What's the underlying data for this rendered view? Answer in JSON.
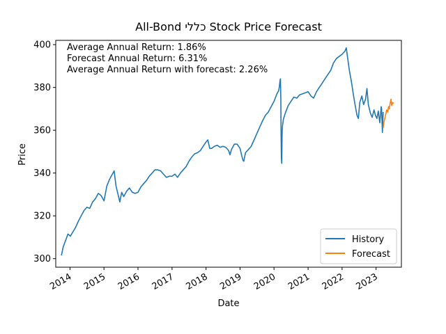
{
  "chart_data": {
    "type": "line",
    "title": "All-Bond כללי Stock Price Forecast",
    "xlabel": "Date",
    "ylabel": "Price",
    "xlim": [
      "2013-08-01",
      "2023-09-30"
    ],
    "ylim": [
      296,
      402
    ],
    "x_ticks": [
      "2014",
      "2015",
      "2016",
      "2017",
      "2018",
      "2019",
      "2020",
      "2021",
      "2022",
      "2023"
    ],
    "y_ticks": [
      300,
      320,
      340,
      360,
      380,
      400
    ],
    "grid": false,
    "legend_position": "bottom-right",
    "annotations": [
      "Average Annual Return: 1.86%",
      "Forecast Annual Return: 6.31%",
      "Average Annual Return with forecast: 2.26%"
    ],
    "series": [
      {
        "name": "History",
        "color": "#1f77b4",
        "points": [
          [
            "2013-10-01",
            301.5
          ],
          [
            "2013-10-20",
            305.5
          ],
          [
            "2013-11-15",
            308.5
          ],
          [
            "2013-12-10",
            311.5
          ],
          [
            "2014-01-05",
            310.5
          ],
          [
            "2014-02-01",
            312.5
          ],
          [
            "2014-03-01",
            314.5
          ],
          [
            "2014-04-01",
            317.5
          ],
          [
            "2014-05-01",
            320.0
          ],
          [
            "2014-06-01",
            322.5
          ],
          [
            "2014-07-01",
            324.0
          ],
          [
            "2014-08-01",
            323.5
          ],
          [
            "2014-09-01",
            326.5
          ],
          [
            "2014-10-01",
            328.0
          ],
          [
            "2014-11-01",
            330.5
          ],
          [
            "2014-12-01",
            329.5
          ],
          [
            "2015-01-01",
            327.0
          ],
          [
            "2015-02-01",
            334.0
          ],
          [
            "2015-03-01",
            337.0
          ],
          [
            "2015-04-01",
            339.5
          ],
          [
            "2015-04-20",
            341.0
          ],
          [
            "2015-05-10",
            334.0
          ],
          [
            "2015-06-01",
            330.0
          ],
          [
            "2015-06-20",
            326.5
          ],
          [
            "2015-07-10",
            331.0
          ],
          [
            "2015-08-01",
            329.0
          ],
          [
            "2015-09-01",
            331.5
          ],
          [
            "2015-10-01",
            333.0
          ],
          [
            "2015-11-01",
            331.0
          ],
          [
            "2015-12-01",
            330.5
          ],
          [
            "2016-01-01",
            331.0
          ],
          [
            "2016-02-01",
            333.5
          ],
          [
            "2016-03-01",
            335.0
          ],
          [
            "2016-04-01",
            336.5
          ],
          [
            "2016-05-01",
            338.5
          ],
          [
            "2016-06-01",
            340.0
          ],
          [
            "2016-07-01",
            341.5
          ],
          [
            "2016-08-01",
            341.5
          ],
          [
            "2016-09-01",
            341.0
          ],
          [
            "2016-10-01",
            339.5
          ],
          [
            "2016-11-01",
            338.0
          ],
          [
            "2016-12-01",
            338.5
          ],
          [
            "2017-01-01",
            338.5
          ],
          [
            "2017-02-01",
            339.5
          ],
          [
            "2017-03-01",
            338.0
          ],
          [
            "2017-04-01",
            340.0
          ],
          [
            "2017-05-01",
            341.5
          ],
          [
            "2017-06-01",
            343.0
          ],
          [
            "2017-07-01",
            345.5
          ],
          [
            "2017-08-01",
            347.5
          ],
          [
            "2017-09-01",
            349.0
          ],
          [
            "2017-10-01",
            349.5
          ],
          [
            "2017-11-01",
            350.5
          ],
          [
            "2017-12-01",
            352.5
          ],
          [
            "2018-01-01",
            354.5
          ],
          [
            "2018-01-20",
            355.5
          ],
          [
            "2018-02-10",
            351.5
          ],
          [
            "2018-03-01",
            351.5
          ],
          [
            "2018-04-01",
            352.5
          ],
          [
            "2018-05-01",
            353.0
          ],
          [
            "2018-06-01",
            352.0
          ],
          [
            "2018-07-01",
            352.5
          ],
          [
            "2018-08-01",
            352.0
          ],
          [
            "2018-09-01",
            350.5
          ],
          [
            "2018-09-15",
            348.5
          ],
          [
            "2018-10-01",
            351.0
          ],
          [
            "2018-11-01",
            353.5
          ],
          [
            "2018-12-01",
            353.5
          ],
          [
            "2019-01-01",
            351.5
          ],
          [
            "2019-01-20",
            348.0
          ],
          [
            "2019-02-01",
            346.0
          ],
          [
            "2019-02-10",
            345.5
          ],
          [
            "2019-03-01",
            349.5
          ],
          [
            "2019-04-01",
            351.0
          ],
          [
            "2019-05-01",
            352.5
          ],
          [
            "2019-06-01",
            355.5
          ],
          [
            "2019-07-01",
            358.5
          ],
          [
            "2019-08-01",
            361.5
          ],
          [
            "2019-09-01",
            364.5
          ],
          [
            "2019-10-01",
            367.0
          ],
          [
            "2019-11-01",
            368.5
          ],
          [
            "2019-12-01",
            371.0
          ],
          [
            "2020-01-01",
            373.5
          ],
          [
            "2020-02-01",
            377.0
          ],
          [
            "2020-02-20",
            378.5
          ],
          [
            "2020-02-28",
            380.5
          ],
          [
            "2020-03-05",
            383.0
          ],
          [
            "2020-03-10",
            384.0
          ],
          [
            "2020-03-14",
            375.0
          ],
          [
            "2020-03-17",
            358.0
          ],
          [
            "2020-03-20",
            347.0
          ],
          [
            "2020-03-24",
            344.5
          ],
          [
            "2020-03-28",
            359.0
          ],
          [
            "2020-04-01",
            362.0
          ],
          [
            "2020-04-10",
            365.0
          ],
          [
            "2020-05-01",
            368.0
          ],
          [
            "2020-06-01",
            371.5
          ],
          [
            "2020-07-01",
            373.5
          ],
          [
            "2020-08-01",
            375.5
          ],
          [
            "2020-09-01",
            375.0
          ],
          [
            "2020-10-01",
            376.5
          ],
          [
            "2020-11-01",
            377.0
          ],
          [
            "2020-12-01",
            377.5
          ],
          [
            "2021-01-01",
            378.0
          ],
          [
            "2021-02-01",
            376.0
          ],
          [
            "2021-03-01",
            375.0
          ],
          [
            "2021-04-01",
            378.0
          ],
          [
            "2021-05-01",
            380.0
          ],
          [
            "2021-06-01",
            382.0
          ],
          [
            "2021-07-01",
            384.0
          ],
          [
            "2021-08-01",
            386.0
          ],
          [
            "2021-09-01",
            388.0
          ],
          [
            "2021-10-01",
            391.5
          ],
          [
            "2021-11-01",
            393.5
          ],
          [
            "2021-12-01",
            394.5
          ],
          [
            "2022-01-01",
            395.5
          ],
          [
            "2022-02-01",
            397.0
          ],
          [
            "2022-02-15",
            398.5
          ],
          [
            "2022-03-01",
            394.0
          ],
          [
            "2022-03-20",
            388.0
          ],
          [
            "2022-04-10",
            383.0
          ],
          [
            "2022-05-01",
            377.0
          ],
          [
            "2022-05-20",
            372.0
          ],
          [
            "2022-06-10",
            367.0
          ],
          [
            "2022-06-25",
            365.5
          ],
          [
            "2022-07-10",
            373.0
          ],
          [
            "2022-08-01",
            376.0
          ],
          [
            "2022-08-20",
            372.0
          ],
          [
            "2022-09-10",
            374.5
          ],
          [
            "2022-09-25",
            379.5
          ],
          [
            "2022-10-10",
            372.0
          ],
          [
            "2022-11-01",
            368.0
          ],
          [
            "2022-11-20",
            366.0
          ],
          [
            "2022-12-10",
            369.5
          ],
          [
            "2022-12-25",
            367.0
          ],
          [
            "2023-01-10",
            365.5
          ],
          [
            "2023-01-25",
            369.0
          ],
          [
            "2023-02-10",
            363.5
          ],
          [
            "2023-02-25",
            371.0
          ],
          [
            "2023-03-01",
            370.0
          ],
          [
            "2023-03-10",
            359.0
          ],
          [
            "2023-03-18",
            368.5
          ]
        ]
      },
      {
        "name": "Forecast",
        "color": "#ff7f0e",
        "points": [
          [
            "2023-03-18",
            361.0
          ],
          [
            "2023-03-25",
            363.5
          ],
          [
            "2023-04-05",
            365.5
          ],
          [
            "2023-04-15",
            367.5
          ],
          [
            "2023-04-25",
            369.5
          ],
          [
            "2023-05-05",
            368.5
          ],
          [
            "2023-05-15",
            371.0
          ],
          [
            "2023-05-22",
            370.0
          ],
          [
            "2023-06-01",
            372.5
          ],
          [
            "2023-06-10",
            374.5
          ],
          [
            "2023-06-18",
            371.5
          ],
          [
            "2023-06-28",
            373.0
          ],
          [
            "2023-07-10",
            372.5
          ]
        ]
      }
    ]
  }
}
